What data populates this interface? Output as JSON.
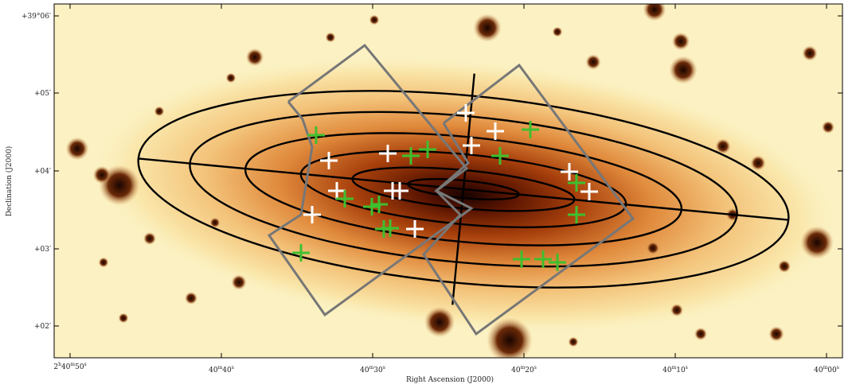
{
  "x_axis": {
    "title": "Right Ascension (J2000)",
    "ticks": [
      [
        "2",
        "h",
        "40",
        "m",
        "50",
        "s"
      ],
      [
        "",
        "",
        "40",
        "m",
        "40",
        "s"
      ],
      [
        "",
        "",
        "40",
        "m",
        "30",
        "s"
      ],
      [
        "",
        "",
        "40",
        "m",
        "20",
        "s"
      ],
      [
        "",
        "",
        "40",
        "m",
        "10",
        "s"
      ],
      [
        "",
        "",
        "40",
        "m",
        "00",
        "s"
      ]
    ]
  },
  "y_axis": {
    "title": "Declination (J2000)",
    "ticks": [
      "+39°06′",
      "+05′",
      "+04′",
      "+03′",
      "+02′"
    ]
  }
}
